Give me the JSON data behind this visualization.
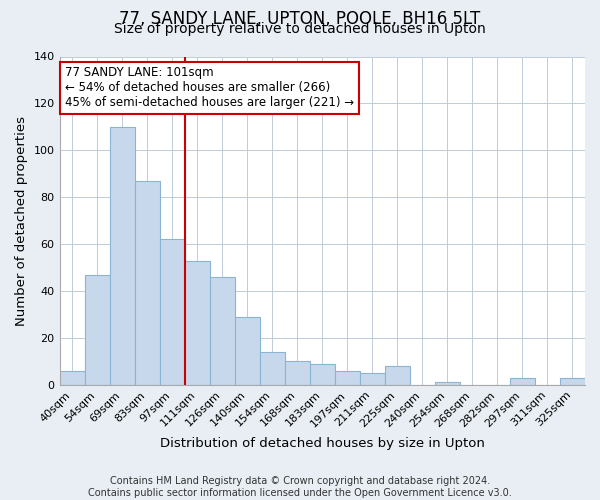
{
  "title": "77, SANDY LANE, UPTON, POOLE, BH16 5LT",
  "subtitle": "Size of property relative to detached houses in Upton",
  "xlabel": "Distribution of detached houses by size in Upton",
  "ylabel": "Number of detached properties",
  "bar_labels": [
    "40sqm",
    "54sqm",
    "69sqm",
    "83sqm",
    "97sqm",
    "111sqm",
    "126sqm",
    "140sqm",
    "154sqm",
    "168sqm",
    "183sqm",
    "197sqm",
    "211sqm",
    "225sqm",
    "240sqm",
    "254sqm",
    "268sqm",
    "282sqm",
    "297sqm",
    "311sqm",
    "325sqm"
  ],
  "bar_values": [
    6,
    47,
    110,
    87,
    62,
    53,
    46,
    29,
    14,
    10,
    9,
    6,
    5,
    8,
    0,
    1,
    0,
    0,
    3,
    0,
    3
  ],
  "bar_color": "#c8d8ec",
  "bar_edge_color": "#8ab4d4",
  "property_line_color": "#cc0000",
  "annotation_line1": "77 SANDY LANE: 101sqm",
  "annotation_line2": "← 54% of detached houses are smaller (266)",
  "annotation_line3": "45% of semi-detached houses are larger (221) →",
  "annotation_box_color": "white",
  "annotation_box_edge_color": "#cc0000",
  "ylim": [
    0,
    140
  ],
  "yticks": [
    0,
    20,
    40,
    60,
    80,
    100,
    120,
    140
  ],
  "footer_line1": "Contains HM Land Registry data © Crown copyright and database right 2024.",
  "footer_line2": "Contains public sector information licensed under the Open Government Licence v3.0.",
  "background_color": "#e8eef4",
  "plot_background_color": "white",
  "title_fontsize": 12,
  "subtitle_fontsize": 10,
  "axis_label_fontsize": 9.5,
  "tick_fontsize": 8,
  "annotation_fontsize": 8.5,
  "footer_fontsize": 7
}
